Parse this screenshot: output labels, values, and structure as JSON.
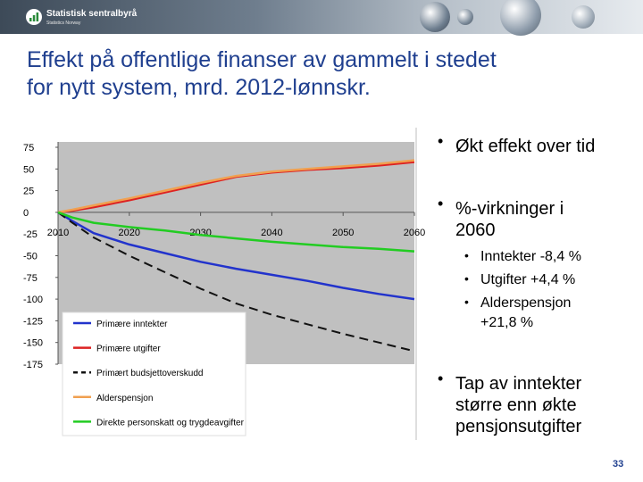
{
  "header": {
    "logo_text": "Statistisk sentralbyrå",
    "logo_sub": "Statistics Norway"
  },
  "title_line1": "Effekt på offentlige finanser av gammelt i stedet",
  "title_line2": "for nytt system, mrd. 2012-lønnskr.",
  "bullets": {
    "b1": "Økt effekt over tid",
    "b2_line1": "%-virkninger i",
    "b2_line2": "2060",
    "sub1": "Inntekter -8,4 %",
    "sub2": "Utgifter +4,4 %",
    "sub3_line1": "Alderspensjon",
    "sub3_line2": "+21,8 %",
    "b3_line1": "Tap av inntekter",
    "b3_line2": "større enn økte",
    "b3_line3": "pensjonsutgifter"
  },
  "page_number": "33",
  "chart_data": {
    "type": "line",
    "title": "",
    "xlabel": "",
    "ylabel": "",
    "xlim": [
      2010,
      2060
    ],
    "ylim": [
      -175,
      75
    ],
    "xticks": [
      2010,
      2020,
      2030,
      2040,
      2050,
      2060
    ],
    "yticks": [
      75,
      50,
      25,
      0,
      -25,
      -50,
      -75,
      -100,
      -125,
      -150,
      -175
    ],
    "grid": false,
    "legend_position": "bottom-left",
    "plot_background": "#c0c0c0",
    "series": [
      {
        "name": "Primære inntekter",
        "color": "#2233cc",
        "dash": "solid",
        "x": [
          2010,
          2012,
          2015,
          2020,
          2025,
          2030,
          2035,
          2040,
          2045,
          2050,
          2055,
          2060
        ],
        "y": [
          0,
          -10,
          -24,
          -37,
          -47,
          -57,
          -65,
          -72,
          -79,
          -87,
          -94,
          -100
        ]
      },
      {
        "name": "Primære utgifter",
        "color": "#dd2222",
        "dash": "solid",
        "x": [
          2010,
          2012,
          2015,
          2020,
          2025,
          2030,
          2035,
          2040,
          2045,
          2050,
          2055,
          2060
        ],
        "y": [
          0,
          2,
          6,
          14,
          23,
          32,
          41,
          46,
          49,
          51,
          54,
          58
        ]
      },
      {
        "name": "Primært budsjettoverskudd",
        "color": "#111111",
        "dash": "dashed",
        "x": [
          2010,
          2012,
          2015,
          2020,
          2025,
          2030,
          2035,
          2040,
          2045,
          2050,
          2055,
          2060
        ],
        "y": [
          0,
          -12,
          -29,
          -50,
          -69,
          -88,
          -105,
          -118,
          -129,
          -140,
          -150,
          -160
        ]
      },
      {
        "name": "Alderspensjon",
        "color": "#f0a050",
        "dash": "solid",
        "x": [
          2010,
          2012,
          2015,
          2020,
          2025,
          2030,
          2035,
          2040,
          2045,
          2050,
          2055,
          2060
        ],
        "y": [
          0,
          3,
          8,
          16,
          25,
          34,
          42,
          47,
          50,
          53,
          56,
          60
        ]
      },
      {
        "name": "Direkte personskatt og trygdeavgifter",
        "color": "#22cc22",
        "dash": "solid",
        "x": [
          2010,
          2012,
          2015,
          2020,
          2025,
          2030,
          2035,
          2040,
          2045,
          2050,
          2055,
          2060
        ],
        "y": [
          0,
          -6,
          -12,
          -17,
          -21,
          -26,
          -30,
          -34,
          -37,
          -40,
          -42,
          -45
        ]
      }
    ]
  }
}
